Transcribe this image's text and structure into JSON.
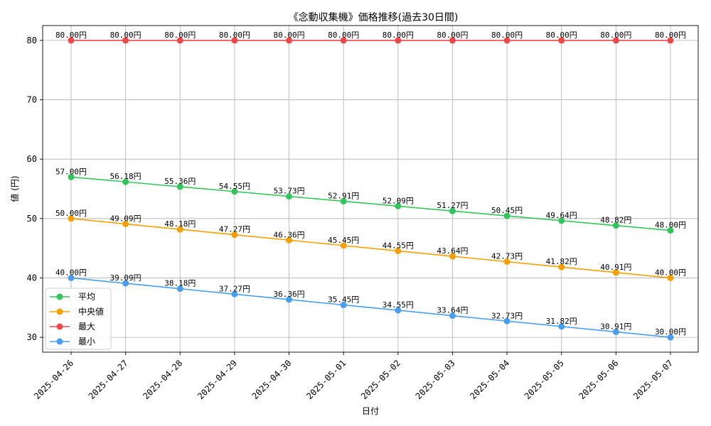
{
  "chart_data": {
    "type": "line",
    "title": "《念動収集機》価格推移(過去30日間)",
    "xlabel": "日付",
    "ylabel": "値 (円)",
    "x": [
      "2025-04-26",
      "2025-04-27",
      "2025-04-28",
      "2025-04-29",
      "2025-04-30",
      "2025-05-01",
      "2025-05-02",
      "2025-05-03",
      "2025-05-04",
      "2025-05-05",
      "2025-05-06",
      "2025-05-07"
    ],
    "ylim": [
      27.5,
      82.5
    ],
    "yticks": [
      30,
      40,
      50,
      60,
      70,
      80
    ],
    "grid": true,
    "legend_position": "lower-left",
    "value_suffix": "円",
    "series": [
      {
        "name": "平均",
        "color": "#33c45c",
        "values": [
          57.0,
          56.18,
          55.36,
          54.55,
          53.73,
          52.91,
          52.09,
          51.27,
          50.45,
          49.64,
          48.82,
          48.0
        ]
      },
      {
        "name": "中央値",
        "color": "#f5a000",
        "values": [
          50.0,
          49.09,
          48.18,
          47.27,
          46.36,
          45.45,
          44.55,
          43.64,
          42.73,
          41.82,
          40.91,
          40.0
        ]
      },
      {
        "name": "最大",
        "color": "#f04848",
        "values": [
          80.0,
          80.0,
          80.0,
          80.0,
          80.0,
          80.0,
          80.0,
          80.0,
          80.0,
          80.0,
          80.0,
          80.0
        ]
      },
      {
        "name": "最小",
        "color": "#4a9ef0",
        "values": [
          40.0,
          39.09,
          38.18,
          37.27,
          36.36,
          35.45,
          34.55,
          33.64,
          32.73,
          31.82,
          30.91,
          30.0
        ]
      }
    ]
  }
}
